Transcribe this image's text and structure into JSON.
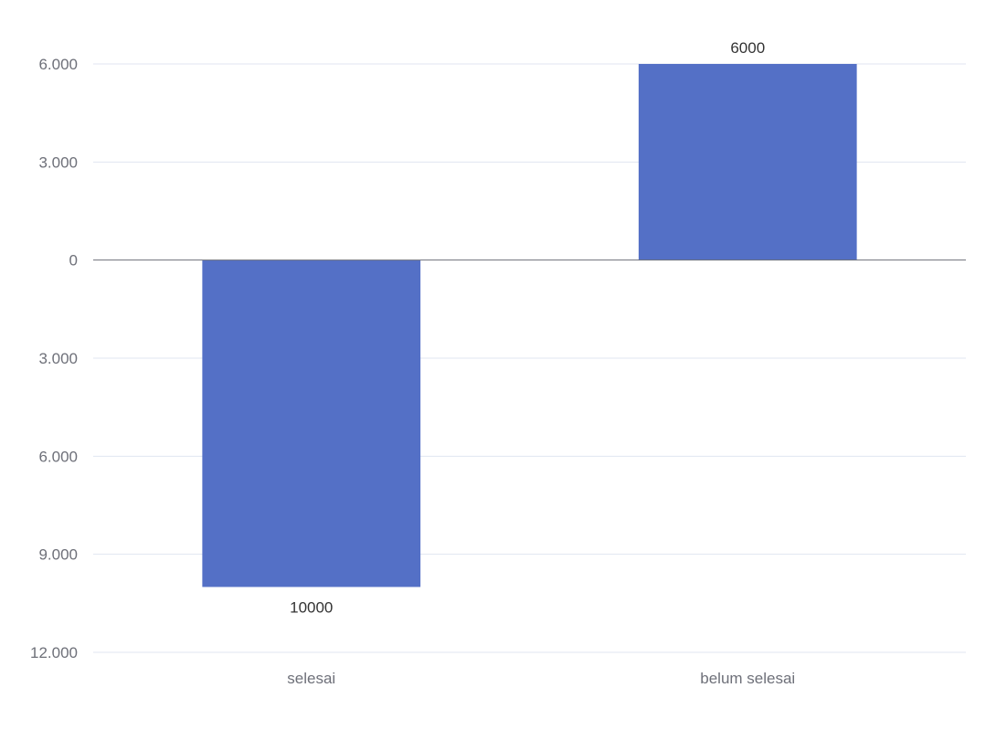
{
  "chart_data": {
    "type": "bar",
    "title": "",
    "xlabel": "",
    "ylabel": "",
    "categories": [
      "selesai",
      "belum selesai"
    ],
    "values": [
      -10000,
      6000
    ],
    "data_labels": [
      "10000",
      "6000"
    ],
    "ylim": [
      -12000,
      6000
    ],
    "yticks": [
      6000,
      3000,
      0,
      -3000,
      -6000,
      -9000,
      -12000
    ],
    "ytick_labels": [
      "6.000",
      "3.000",
      "0",
      "3.000",
      "6.000",
      "9.000",
      "12.000"
    ],
    "grid": true,
    "legend": "none",
    "colors": {
      "bar": "#5470c6",
      "grid": "#e0e6f1",
      "axis": "#6e7079",
      "label": "#333333"
    }
  }
}
